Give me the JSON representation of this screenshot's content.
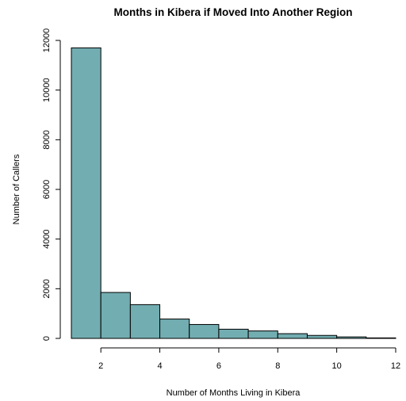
{
  "chart_data": {
    "type": "bar",
    "title": "Months in Kibera if Moved Into Another Region",
    "xlabel": "Number of Months Living in Kibera",
    "ylabel": "Number of Callers",
    "bins": [
      [
        1,
        2
      ],
      [
        2,
        3
      ],
      [
        3,
        4
      ],
      [
        4,
        5
      ],
      [
        5,
        6
      ],
      [
        6,
        7
      ],
      [
        7,
        8
      ],
      [
        8,
        9
      ],
      [
        9,
        10
      ],
      [
        10,
        11
      ],
      [
        11,
        12
      ]
    ],
    "values": [
      11700,
      1850,
      1360,
      780,
      560,
      370,
      300,
      190,
      120,
      60,
      20
    ],
    "xlim": [
      1,
      12
    ],
    "ylim": [
      0,
      12000
    ],
    "x_ticks": [
      2,
      4,
      6,
      8,
      10,
      12
    ],
    "y_ticks": [
      0,
      2000,
      4000,
      6000,
      8000,
      10000,
      12000
    ],
    "bar_color": "#72adb1",
    "grid": false
  }
}
